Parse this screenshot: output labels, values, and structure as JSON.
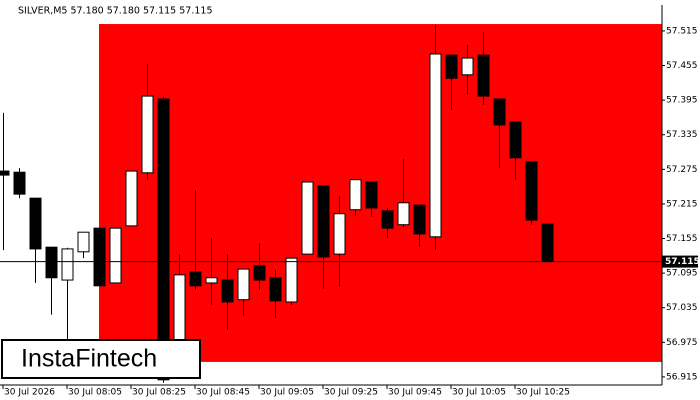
{
  "chart_data": {
    "type": "candlestick",
    "title": "SILVER,M5  57.180 57.180 57.115 57.115",
    "watermark": "InstaFintech",
    "categories": [
      "30 Jul 2026",
      null,
      null,
      null,
      "30 Jul 08:05",
      null,
      null,
      null,
      "30 Jul 08:25",
      null,
      null,
      null,
      "30 Jul 08:45",
      null,
      null,
      null,
      "30 Jul 09:05",
      null,
      null,
      null,
      "30 Jul 09:25",
      null,
      null,
      null,
      "30 Jul 09:45",
      null,
      null,
      null,
      "30 Jul 10:05",
      null,
      null,
      null,
      "30 Jul 10:25",
      null,
      null
    ],
    "open": [
      57.272,
      57.27,
      57.225,
      57.14,
      57.083,
      57.132,
      57.173,
      57.078,
      57.177,
      57.269,
      57.397,
      56.927,
      57.097,
      57.078,
      57.083,
      57.049,
      57.108,
      57.087,
      57.045,
      57.128,
      57.246,
      57.128,
      57.205,
      57.253,
      57.203,
      57.179,
      57.213,
      57.158,
      57.473,
      57.439,
      57.473,
      57.397,
      57.357,
      57.288,
      57.18
    ],
    "high": [
      57.373,
      57.277,
      57.225,
      57.14,
      57.139,
      57.166,
      57.173,
      57.173,
      57.272,
      57.458,
      57.401,
      57.127,
      57.239,
      57.156,
      57.127,
      57.102,
      57.147,
      57.101,
      57.121,
      57.253,
      57.246,
      57.229,
      57.257,
      57.253,
      57.208,
      57.293,
      57.213,
      57.525,
      57.473,
      57.491,
      57.513,
      57.397,
      57.357,
      57.288,
      57.18
    ],
    "low": [
      57.135,
      57.225,
      57.078,
      57.023,
      56.979,
      57.121,
      57.073,
      57.078,
      57.177,
      57.257,
      56.905,
      56.924,
      57.066,
      57.04,
      56.997,
      57.021,
      57.066,
      57.017,
      57.04,
      57.128,
      57.068,
      57.071,
      57.194,
      57.193,
      57.156,
      57.175,
      57.14,
      57.135,
      57.378,
      57.404,
      57.387,
      57.277,
      57.257,
      57.179,
      57.115
    ],
    "close": [
      57.265,
      57.232,
      57.137,
      57.087,
      57.137,
      57.166,
      57.073,
      57.173,
      57.272,
      57.402,
      56.91,
      57.092,
      57.073,
      57.087,
      57.045,
      57.102,
      57.083,
      57.047,
      57.121,
      57.253,
      57.123,
      57.198,
      57.257,
      57.208,
      57.173,
      57.217,
      57.163,
      57.475,
      57.433,
      57.468,
      57.402,
      57.352,
      57.295,
      57.187,
      57.115
    ],
    "up_color": "#ffffff",
    "down_color": "#000000",
    "zone": {
      "color": "#ff0000",
      "high": 57.527,
      "low": 56.941,
      "from": 6
    },
    "last_price": 57.115,
    "ylim": [
      56.901,
      57.56
    ],
    "yticks": [
      57.515,
      57.455,
      57.395,
      57.335,
      57.275,
      57.215,
      57.155,
      57.095,
      57.035,
      56.975,
      56.915
    ]
  }
}
